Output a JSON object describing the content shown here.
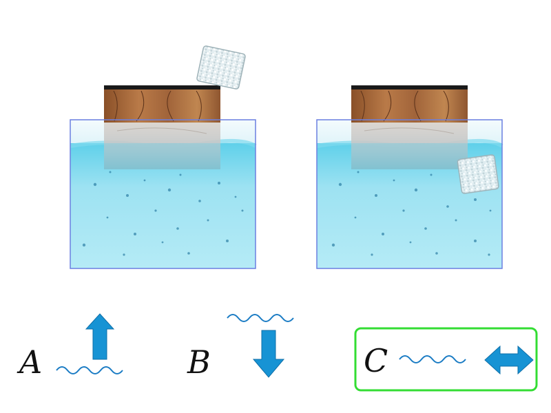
{
  "options": [
    {
      "letter": "A",
      "arrow": "up",
      "selected": false
    },
    {
      "letter": "B",
      "arrow": "down",
      "selected": false
    },
    {
      "letter": "C",
      "arrow": "left-right",
      "selected": true
    }
  ],
  "colors": {
    "water_light": "#b8ecf6",
    "water_mid": "#5fd0ea",
    "water_deep": "#86dcef",
    "tank_outline": "#6a7fe0",
    "wood_dark": "#6b3e1f",
    "wood_mid": "#a66a3c",
    "wood_light": "#c48a58",
    "ice": "#dce8ec",
    "arrow": "#1793d4",
    "wave": "#1b7cc4",
    "selection_border": "#33dd33"
  },
  "icons": {
    "block": "wood-block-icon",
    "ice": "ice-cube-icon",
    "arrow_up": "arrow-up-icon",
    "arrow_down": "arrow-down-icon",
    "arrow_horizontal": "arrow-left-right-icon",
    "wave": "wave-line-icon"
  }
}
